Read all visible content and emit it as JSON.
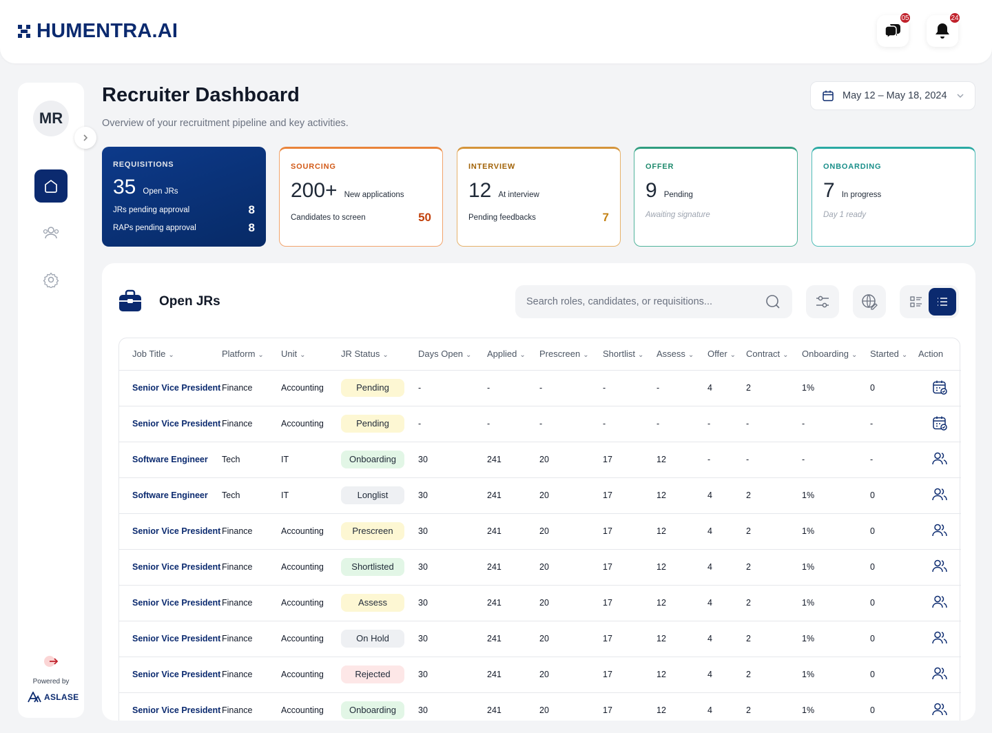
{
  "brand": {
    "name": "HUMENTRA.AI"
  },
  "header": {
    "messages_badge": "05",
    "notifications_badge": "24"
  },
  "sidebar": {
    "avatar_initials": "MR",
    "powered_by": "Powered by",
    "powered_brand": "ASLASE",
    "items": [
      {
        "icon": "home-icon",
        "active": true
      },
      {
        "icon": "users-icon",
        "active": false
      },
      {
        "icon": "gear-icon",
        "active": false
      }
    ]
  },
  "page": {
    "title": "Recruiter Dashboard",
    "subtitle": "Overview of your recruitment pipeline and key activities.",
    "date_range": "May 12 – May 18, 2024"
  },
  "cards": {
    "requisitions": {
      "label": "REQUISITIONS",
      "number": "35",
      "caption": "Open JRs",
      "row1_label": "JRs pending approval",
      "row1_value": "8",
      "row2_label": "RAPs pending approval",
      "row2_value": "8"
    },
    "sourcing": {
      "label": "SOURCING",
      "number": "200+",
      "caption": "New applications",
      "row_label": "Candidates to screen",
      "row_value": "50"
    },
    "interview": {
      "label": "INTERVIEW",
      "number": "12",
      "caption": "At interview",
      "row_label": "Pending feedbacks",
      "row_value": "7"
    },
    "offer": {
      "label": "OFFER",
      "number": "9",
      "caption": "Pending",
      "note": "Awaiting signature"
    },
    "onboarding": {
      "label": "ONBOARDING",
      "number": "7",
      "caption": "In progress",
      "note": "Day 1 ready"
    }
  },
  "panel": {
    "title": "Open JRs",
    "search_placeholder": "Search roles, candidates, or requisitions..."
  },
  "table": {
    "columns": [
      "Job Title",
      "Platform",
      "Unit",
      "JR Status",
      "Days Open",
      "Applied",
      "Prescreen",
      "Shortlist",
      "Assess",
      "Offer",
      "Contract",
      "Onboarding",
      "Started",
      "Action"
    ],
    "rows": [
      {
        "title": "Senior Vice President",
        "platform": "Finance",
        "unit": "Accounting",
        "status": "Pending",
        "days": "-",
        "applied": "-",
        "prescreen": "-",
        "shortlist": "-",
        "assess": "-",
        "offer": "4",
        "contract": "2",
        "onboarding": "1%",
        "started": "0",
        "action": "calendar-check-icon"
      },
      {
        "title": "Senior Vice President",
        "platform": "Finance",
        "unit": "Accounting",
        "status": "Pending",
        "days": "-",
        "applied": "-",
        "prescreen": "-",
        "shortlist": "-",
        "assess": "-",
        "offer": "-",
        "contract": "-",
        "onboarding": "-",
        "started": "-",
        "action": "calendar-check-icon"
      },
      {
        "title": "Software Engineer",
        "platform": "Tech",
        "unit": "IT",
        "status": "Onboarding",
        "days": "30",
        "applied": "241",
        "prescreen": "20",
        "shortlist": "17",
        "assess": "12",
        "offer": "-",
        "contract": "-",
        "onboarding": "-",
        "started": "-",
        "action": "users-icon"
      },
      {
        "title": "Software Engineer",
        "platform": "Tech",
        "unit": "IT",
        "status": "Longlist",
        "days": "30",
        "applied": "241",
        "prescreen": "20",
        "shortlist": "17",
        "assess": "12",
        "offer": "4",
        "contract": "2",
        "onboarding": "1%",
        "started": "0",
        "action": "users-icon"
      },
      {
        "title": "Senior Vice President",
        "platform": "Finance",
        "unit": "Accounting",
        "status": "Prescreen",
        "days": "30",
        "applied": "241",
        "prescreen": "20",
        "shortlist": "17",
        "assess": "12",
        "offer": "4",
        "contract": "2",
        "onboarding": "1%",
        "started": "0",
        "action": "users-icon"
      },
      {
        "title": "Senior Vice President",
        "platform": "Finance",
        "unit": "Accounting",
        "status": "Shortlisted",
        "days": "30",
        "applied": "241",
        "prescreen": "20",
        "shortlist": "17",
        "assess": "12",
        "offer": "4",
        "contract": "2",
        "onboarding": "1%",
        "started": "0",
        "action": "users-icon"
      },
      {
        "title": "Senior Vice President",
        "platform": "Finance",
        "unit": "Accounting",
        "status": "Assess",
        "days": "30",
        "applied": "241",
        "prescreen": "20",
        "shortlist": "17",
        "assess": "12",
        "offer": "4",
        "contract": "2",
        "onboarding": "1%",
        "started": "0",
        "action": "users-icon"
      },
      {
        "title": "Senior Vice President",
        "platform": "Finance",
        "unit": "Accounting",
        "status": "On Hold",
        "days": "30",
        "applied": "241",
        "prescreen": "20",
        "shortlist": "17",
        "assess": "12",
        "offer": "4",
        "contract": "2",
        "onboarding": "1%",
        "started": "0",
        "action": "users-icon"
      },
      {
        "title": "Senior Vice President",
        "platform": "Finance",
        "unit": "Accounting",
        "status": "Rejected",
        "days": "30",
        "applied": "241",
        "prescreen": "20",
        "shortlist": "17",
        "assess": "12",
        "offer": "4",
        "contract": "2",
        "onboarding": "1%",
        "started": "0",
        "action": "users-icon"
      },
      {
        "title": "Senior Vice President",
        "platform": "Finance",
        "unit": "Accounting",
        "status": "Onboarding",
        "days": "30",
        "applied": "241",
        "prescreen": "20",
        "shortlist": "17",
        "assess": "12",
        "offer": "4",
        "contract": "2",
        "onboarding": "1%",
        "started": "0",
        "action": "users-icon"
      }
    ]
  },
  "colors": {
    "brand": "#0b2a6f",
    "accent_red": "#c0212b"
  }
}
